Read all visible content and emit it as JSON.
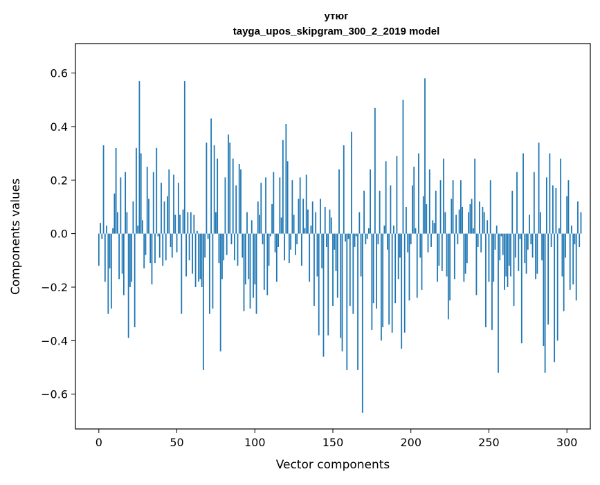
{
  "chart_data": {
    "type": "bar",
    "title": "утюг",
    "subtitle": "tayga_upos_skipgram_300_2_2019 model",
    "xlabel": "Vector components",
    "ylabel": "Components values",
    "xlim": [
      -15,
      315
    ],
    "ylim": [
      -0.73,
      0.71
    ],
    "x_ticks": [
      0,
      50,
      100,
      150,
      200,
      250,
      300
    ],
    "x_tick_labels": [
      "0",
      "50",
      "100",
      "150",
      "200",
      "250",
      "300"
    ],
    "y_ticks": [
      -0.6,
      -0.4,
      -0.2,
      0.0,
      0.2,
      0.4,
      0.6
    ],
    "y_tick_labels": [
      "−0.6",
      "−0.4",
      "−0.2",
      "0.0",
      "0.2",
      "0.4",
      "0.6"
    ],
    "bar_color": "#1f77b4",
    "grid": false,
    "values": [
      -0.12,
      0.04,
      -0.02,
      0.33,
      -0.18,
      0.03,
      -0.3,
      -0.13,
      -0.28,
      0.02,
      0.15,
      0.32,
      0.08,
      -0.17,
      0.21,
      -0.15,
      -0.23,
      0.23,
      0.08,
      -0.39,
      -0.2,
      -0.18,
      0.12,
      -0.35,
      0.32,
      0.03,
      0.57,
      0.3,
      0.05,
      -0.13,
      -0.08,
      0.25,
      0.13,
      -0.11,
      -0.19,
      0.23,
      -0.11,
      0.32,
      -0.01,
      -0.09,
      0.19,
      -0.12,
      0.12,
      -0.1,
      0.14,
      0.24,
      -0.05,
      -0.09,
      0.22,
      0.07,
      -0.07,
      0.19,
      0.07,
      -0.3,
      0.09,
      0.57,
      -0.16,
      0.08,
      -0.1,
      0.08,
      -0.15,
      0.07,
      -0.2,
      0.01,
      -0.18,
      -0.17,
      -0.2,
      -0.51,
      -0.09,
      0.34,
      -0.02,
      -0.3,
      0.43,
      -0.28,
      0.33,
      0.08,
      0.28,
      -0.11,
      -0.44,
      -0.17,
      -0.1,
      0.21,
      -0.08,
      0.37,
      0.34,
      -0.04,
      0.28,
      -0.1,
      0.18,
      -0.12,
      0.26,
      0.24,
      -0.09,
      -0.29,
      -0.19,
      0.08,
      -0.17,
      -0.28,
      0.05,
      -0.24,
      -0.19,
      -0.3,
      0.12,
      0.07,
      0.19,
      -0.04,
      -0.21,
      0.21,
      -0.23,
      -0.12,
      -0.01,
      0.11,
      0.23,
      -0.07,
      -0.18,
      -0.05,
      0.21,
      0.06,
      0.35,
      -0.1,
      0.41,
      0.27,
      -0.11,
      -0.06,
      0.2,
      0.07,
      -0.08,
      -0.04,
      0.13,
      0.21,
      -0.12,
      0.13,
      0.02,
      0.22,
      0.09,
      -0.18,
      0.03,
      0.12,
      -0.27,
      0.08,
      -0.16,
      -0.38,
      0.13,
      -0.13,
      -0.46,
      0.1,
      -0.05,
      -0.38,
      0.09,
      0.06,
      -0.27,
      -0.06,
      -0.14,
      -0.24,
      0.24,
      -0.39,
      -0.44,
      0.33,
      -0.03,
      -0.51,
      -0.02,
      -0.27,
      0.38,
      -0.3,
      -0.05,
      -0.01,
      -0.51,
      0.08,
      -0.16,
      -0.67,
      0.16,
      -0.04,
      -0.02,
      0.02,
      0.24,
      -0.36,
      -0.26,
      0.47,
      -0.28,
      -0.04,
      0.16,
      -0.4,
      -0.35,
      0.03,
      0.27,
      -0.06,
      -0.34,
      0.18,
      -0.37,
      0.03,
      -0.26,
      0.29,
      -0.17,
      -0.09,
      -0.43,
      0.5,
      -0.37,
      0.1,
      -0.07,
      -0.25,
      -0.04,
      0.18,
      0.25,
      0.02,
      -0.24,
      0.3,
      -0.09,
      -0.21,
      0.14,
      0.58,
      0.11,
      -0.07,
      0.24,
      -0.05,
      0.05,
      0.04,
      0.16,
      -0.18,
      -0.12,
      0.2,
      -0.14,
      0.28,
      0.08,
      -0.16,
      -0.32,
      -0.25,
      0.13,
      0.2,
      -0.17,
      0.07,
      -0.04,
      0.09,
      0.2,
      0.1,
      -0.18,
      -0.15,
      -0.11,
      0.08,
      0.11,
      0.13,
      0.02,
      0.28,
      -0.23,
      -0.05,
      0.12,
      -0.07,
      0.1,
      0.08,
      -0.35,
      0.05,
      -0.18,
      0.2,
      -0.36,
      -0.18,
      -0.06,
      0.03,
      -0.52,
      -0.1,
      -0.01,
      -0.08,
      -0.21,
      -0.16,
      -0.2,
      -0.12,
      -0.16,
      0.16,
      -0.27,
      -0.09,
      0.23,
      -0.14,
      -0.02,
      -0.41,
      0.3,
      -0.11,
      -0.15,
      -0.06,
      0.07,
      -0.04,
      -0.09,
      0.23,
      -0.17,
      -0.15,
      0.34,
      0.08,
      -0.1,
      -0.42,
      -0.52,
      0.21,
      -0.34,
      0.3,
      -0.05,
      0.18,
      -0.48,
      0.17,
      -0.4,
      0.02,
      0.28,
      -0.16,
      -0.29,
      -0.09,
      0.14,
      0.2,
      -0.21,
      0.03,
      -0.19,
      -0.04,
      -0.25,
      0.12,
      -0.05,
      0.08
    ]
  }
}
